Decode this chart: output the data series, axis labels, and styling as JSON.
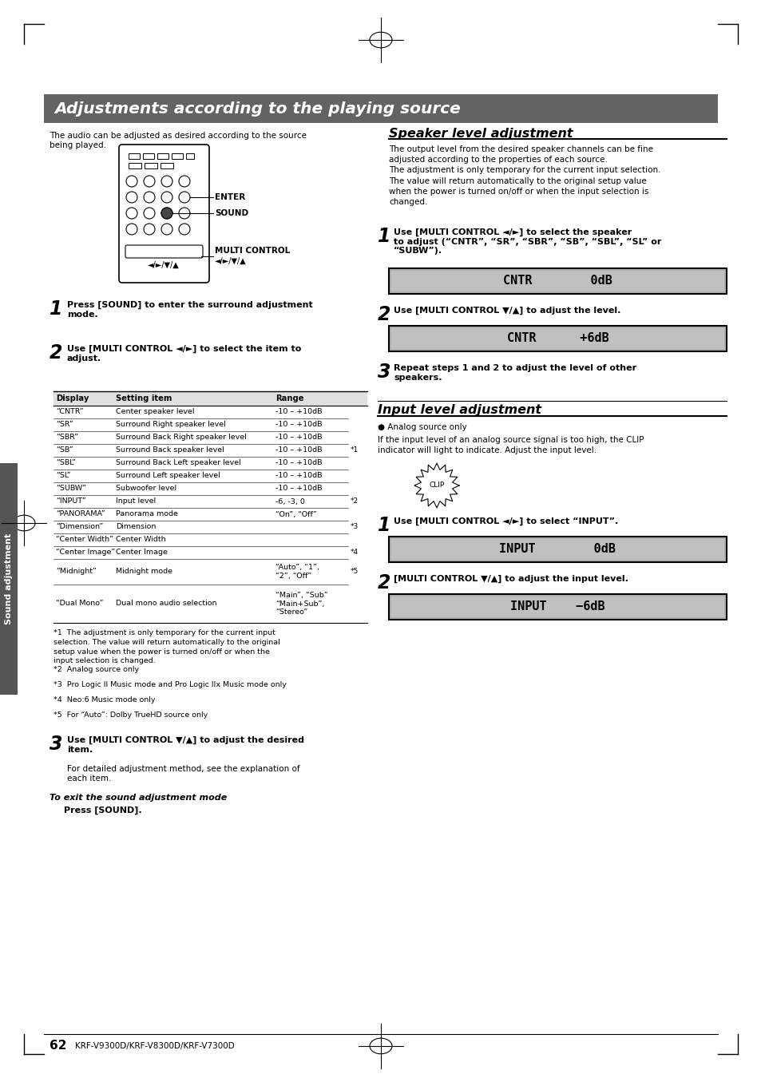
{
  "title": "Adjustments according to the playing source",
  "title_bg": "#636363",
  "title_color": "#ffffff",
  "page_bg": "#ffffff",
  "header_intro": "The audio can be adjusted as desired according to the source\nbeing played.",
  "steps_left": [
    {
      "num": "1",
      "text": "Press [SOUND] to enter the surround adjustment\nmode."
    },
    {
      "num": "2",
      "text": "Use [MULTI CONTROL ◄/►] to select the item to\nadjust."
    }
  ],
  "table_headers": [
    "Display",
    "Setting item",
    "Range"
  ],
  "table_rows": [
    [
      "“CNTR”",
      "Center speaker level",
      "-10 – +10dB",
      ""
    ],
    [
      "“SR”",
      "Surround Right speaker level",
      "-10 – +10dB",
      ""
    ],
    [
      "“SBR”",
      "Surround Back Right speaker level",
      "-10 – +10dB",
      ""
    ],
    [
      "“SB”",
      "Surround Back speaker level",
      "-10 – +10dB",
      "*1"
    ],
    [
      "“SBL”",
      "Surround Back Left speaker level",
      "-10 – +10dB",
      ""
    ],
    [
      "“SL”",
      "Surround Left speaker level",
      "-10 – +10dB",
      ""
    ],
    [
      "“SUBW”",
      "Subwoofer level",
      "-10 – +10dB",
      ""
    ],
    [
      "“INPUT”",
      "Input level",
      "-6, -3, 0",
      "*2"
    ],
    [
      "“PANORAMA”",
      "Panorama mode",
      "“On”, “Off”",
      ""
    ],
    [
      "“Dimension”",
      "Dimension",
      "",
      "*3"
    ],
    [
      "“Center Width”",
      "Center Width",
      "",
      ""
    ],
    [
      "“Center Image”",
      "Center Image",
      "",
      "*4"
    ],
    [
      "“Midnight”",
      "Midnight mode",
      "“Auto”, “1”,\n“2”, “Off”",
      "*5"
    ],
    [
      "“Dual Mono”",
      "Dual mono audio selection",
      "“Main”, “Sub”\n“Main+Sub”,\n“Stereo”",
      ""
    ]
  ],
  "footnotes": [
    [
      "*1",
      "The adjustment is only temporary for the current input\nselection. The value will return automatically to the original\nsetup value when the power is turned on/off or when the\ninput selection is changed."
    ],
    [
      "*2",
      "Analog source only"
    ],
    [
      "*3",
      "Pro Logic II Music mode and Pro Logic IIx Music mode only"
    ],
    [
      "*4",
      "Neo:6 Music mode only"
    ],
    [
      "*5",
      "For “Auto”: Dolby TrueHD source only"
    ]
  ],
  "step3_text": "Use [MULTI CONTROL ▼/▲] to adjust the desired\nitem.",
  "detail_text": "For detailed adjustment method, see the explanation of\neach item.",
  "exit_title": "To exit the sound adjustment mode",
  "exit_body": "Press [SOUND].",
  "speaker_title": "Speaker level adjustment",
  "speaker_intro": "The output level from the desired speaker channels can be fine\nadjusted according to the properties of each source.\nThe adjustment is only temporary for the current input selection.\nThe value will return automatically to the original setup value\nwhen the power is turned on/off or when the input selection is\nchanged.",
  "speaker_step1": "Use [MULTI CONTROL ◄/►] to select the speaker\nto adjust (“CNTR”, “SR”, “SBR”, “SB”, “SBL”, “SL” or\n“SUBW”).",
  "speaker_disp1": "CNTR        0dB",
  "speaker_step2": "Use [MULTI CONTROL ▼/▲] to adjust the level.",
  "speaker_disp2": "CNTR      +6dB",
  "speaker_step3": "Repeat steps 1 and 2 to adjust the level of other\nspeakers.",
  "input_title": "Input level adjustment",
  "input_bullet": "● Analog source only",
  "input_intro": "If the input level of an analog source signal is too high, the CLIP\nindicator will light to indicate. Adjust the input level.",
  "input_step1": "Use [MULTI CONTROL ◄/►] to select “INPUT”.",
  "input_disp1": "INPUT        0dB",
  "input_step2": "[MULTI CONTROL ▼/▲] to adjust the input level.",
  "input_disp2": "INPUT    −6dB",
  "page_num": "62",
  "page_label": "KRF-V9300D/KRF-V8300D/KRF-V7300D",
  "sidebar_text": "Sound adjustment"
}
